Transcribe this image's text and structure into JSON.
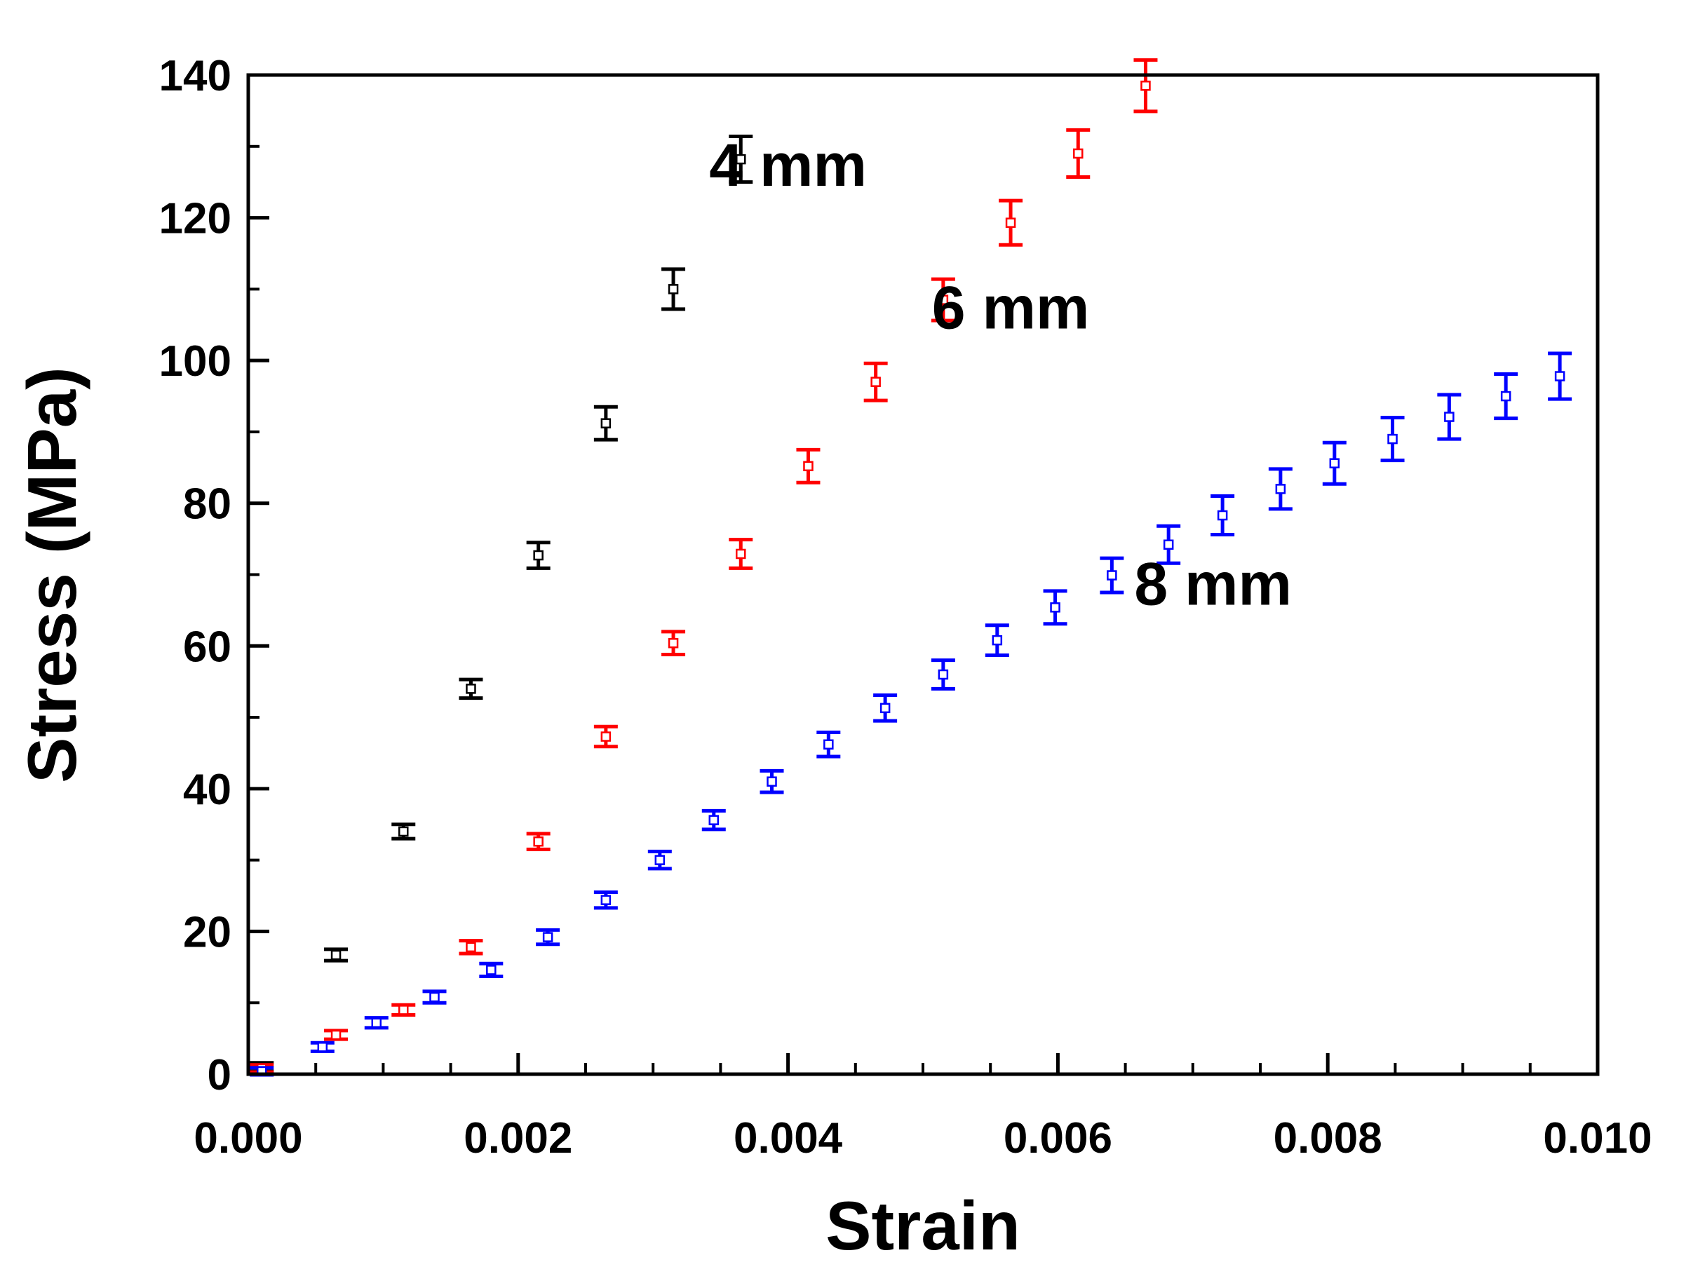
{
  "chart_data": {
    "type": "scatter",
    "title": "",
    "xlabel": "Strain",
    "ylabel": "Stress (MPa)",
    "xlim": [
      0,
      0.01
    ],
    "ylim": [
      0,
      140
    ],
    "grid": false,
    "x_ticks": [
      0,
      0.002,
      0.004,
      0.006,
      0.008,
      0.01
    ],
    "x_tick_labels": [
      "0.000",
      "0.002",
      "0.004",
      "0.006",
      "0.008",
      "0.010"
    ],
    "y_ticks": [
      0,
      20,
      40,
      60,
      80,
      100,
      120,
      140
    ],
    "y_tick_labels": [
      "0",
      "20",
      "40",
      "60",
      "80",
      "100",
      "120",
      "140"
    ],
    "series": [
      {
        "name": "4 mm",
        "label": "4 mm",
        "color": "#000000",
        "points": [
          {
            "x": 0.0001,
            "y": 1.0,
            "err": 0.6
          },
          {
            "x": 0.00065,
            "y": 16.7,
            "err": 0.8
          },
          {
            "x": 0.00115,
            "y": 34.0,
            "err": 1.0
          },
          {
            "x": 0.00165,
            "y": 54.0,
            "err": 1.3
          },
          {
            "x": 0.00215,
            "y": 72.7,
            "err": 1.8
          },
          {
            "x": 0.00265,
            "y": 91.2,
            "err": 2.3
          },
          {
            "x": 0.00315,
            "y": 110.0,
            "err": 2.8
          },
          {
            "x": 0.00365,
            "y": 128.2,
            "err": 3.2
          }
        ]
      },
      {
        "name": "6 mm",
        "label": "6 mm",
        "color": "#ff0000",
        "points": [
          {
            "x": 0.0001,
            "y": 0.8,
            "err": 0.5
          },
          {
            "x": 0.00065,
            "y": 5.5,
            "err": 0.6
          },
          {
            "x": 0.00115,
            "y": 9.0,
            "err": 0.7
          },
          {
            "x": 0.00165,
            "y": 17.8,
            "err": 0.9
          },
          {
            "x": 0.00215,
            "y": 32.6,
            "err": 1.1
          },
          {
            "x": 0.00265,
            "y": 47.3,
            "err": 1.4
          },
          {
            "x": 0.00315,
            "y": 60.4,
            "err": 1.6
          },
          {
            "x": 0.00365,
            "y": 72.9,
            "err": 2.0
          },
          {
            "x": 0.00415,
            "y": 85.2,
            "err": 2.3
          },
          {
            "x": 0.00465,
            "y": 97.0,
            "err": 2.6
          },
          {
            "x": 0.00515,
            "y": 108.5,
            "err": 2.9
          },
          {
            "x": 0.00565,
            "y": 119.3,
            "err": 3.1
          },
          {
            "x": 0.00615,
            "y": 129.0,
            "err": 3.3
          },
          {
            "x": 0.00665,
            "y": 138.5,
            "err": 3.6
          }
        ]
      },
      {
        "name": "8 mm",
        "label": "8 mm",
        "color": "#0000ff",
        "points": [
          {
            "x": 0.0001,
            "y": 0.4,
            "err": 0.5
          },
          {
            "x": 0.00055,
            "y": 3.8,
            "err": 0.6
          },
          {
            "x": 0.00095,
            "y": 7.2,
            "err": 0.7
          },
          {
            "x": 0.00138,
            "y": 10.8,
            "err": 0.8
          },
          {
            "x": 0.0018,
            "y": 14.6,
            "err": 0.9
          },
          {
            "x": 0.00222,
            "y": 19.2,
            "err": 1.0
          },
          {
            "x": 0.00265,
            "y": 24.4,
            "err": 1.1
          },
          {
            "x": 0.00305,
            "y": 30.0,
            "err": 1.2
          },
          {
            "x": 0.00345,
            "y": 35.6,
            "err": 1.3
          },
          {
            "x": 0.00388,
            "y": 41.0,
            "err": 1.5
          },
          {
            "x": 0.0043,
            "y": 46.2,
            "err": 1.7
          },
          {
            "x": 0.00472,
            "y": 51.3,
            "err": 1.8
          },
          {
            "x": 0.00515,
            "y": 56.0,
            "err": 2.0
          },
          {
            "x": 0.00555,
            "y": 60.8,
            "err": 2.1
          },
          {
            "x": 0.00598,
            "y": 65.4,
            "err": 2.3
          },
          {
            "x": 0.0064,
            "y": 69.9,
            "err": 2.4
          },
          {
            "x": 0.00682,
            "y": 74.2,
            "err": 2.6
          },
          {
            "x": 0.00722,
            "y": 78.3,
            "err": 2.7
          },
          {
            "x": 0.00765,
            "y": 82.0,
            "err": 2.8
          },
          {
            "x": 0.00805,
            "y": 85.6,
            "err": 2.9
          },
          {
            "x": 0.00848,
            "y": 89.0,
            "err": 3.0
          },
          {
            "x": 0.0089,
            "y": 92.1,
            "err": 3.1
          },
          {
            "x": 0.00932,
            "y": 95.0,
            "err": 3.1
          },
          {
            "x": 0.00972,
            "y": 97.8,
            "err": 3.2
          }
        ]
      }
    ],
    "annotations": [
      {
        "text": "4 mm",
        "x": 0.004,
        "y": 124.5
      },
      {
        "text": "6 mm",
        "x": 0.00565,
        "y": 104.5
      },
      {
        "text": "8 mm",
        "x": 0.00715,
        "y": 65.8
      }
    ]
  }
}
